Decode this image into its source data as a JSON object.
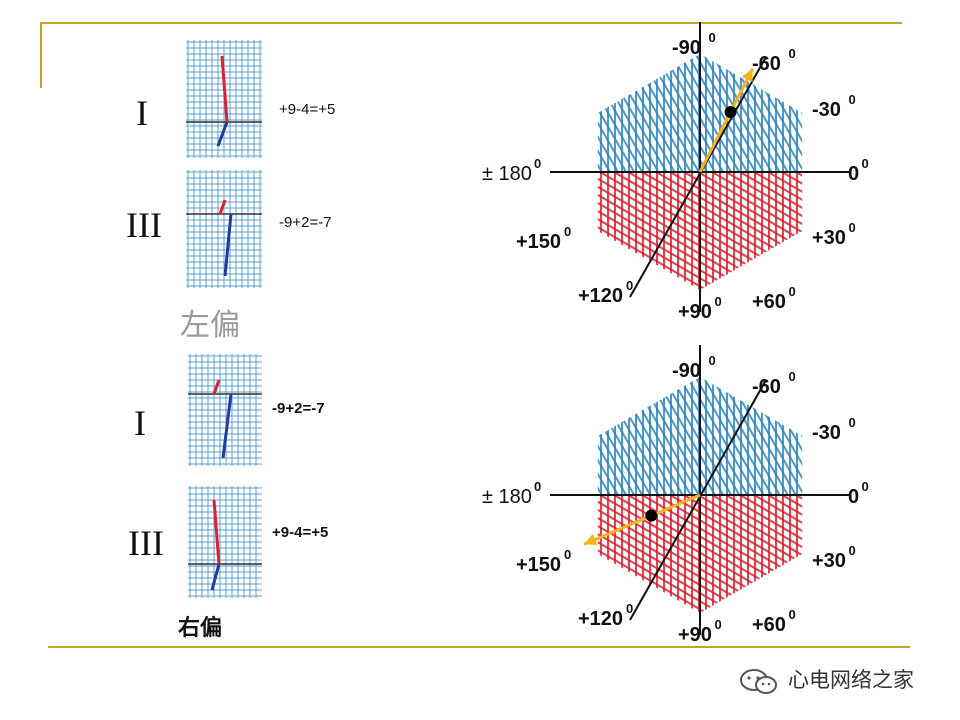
{
  "panels": {
    "top": {
      "caption": "左偏",
      "leads": [
        {
          "label": "I",
          "equation": "+9-4=+5"
        },
        {
          "label": "III",
          "equation": "-9+2=-7"
        }
      ]
    },
    "bottom": {
      "caption": "右偏",
      "leads": [
        {
          "label": "I",
          "equation": "-9+2=-7"
        },
        {
          "label": "III",
          "equation": "+9-4=+5"
        }
      ]
    }
  },
  "hexaxial_labels": {
    "m90": "-90",
    "m60": "-60",
    "m30": "-30",
    "zero": "0",
    "pm180": "± 180",
    "p150": "+150",
    "p120": "+120",
    "p90": "+90",
    "p60": "+60",
    "p30": "+30",
    "deg": "0"
  },
  "colors": {
    "grid_blue": "#2e86c1",
    "grid_red": "#e02030",
    "arrow": "#f5b21a",
    "frame": "#c9a227"
  },
  "watermark": "心电网络之家"
}
